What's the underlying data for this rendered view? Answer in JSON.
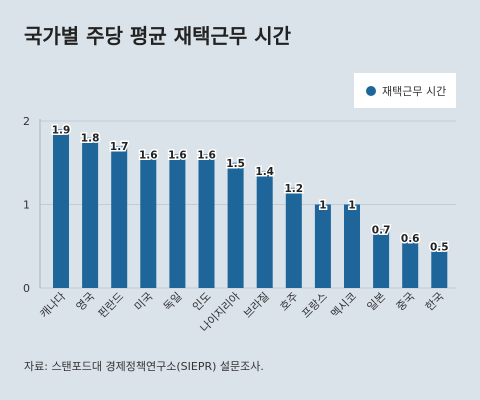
{
  "title": "국가별 주당 평균 재택근무 시간",
  "source": "자료: 스탠포드대 경제정책연구소(SIEPR) 설문조사.",
  "colors": {
    "bar": "#1e6699",
    "background": "#dae2ea",
    "grid": "#c3ccd6"
  },
  "chart_data": {
    "type": "bar",
    "title": "국가별 주당 평균 재택근무 시간",
    "xlabel": "",
    "ylabel": "",
    "ylim": [
      0,
      2
    ],
    "yticks": [
      0,
      1,
      2
    ],
    "grid": true,
    "legend_position": "top-right",
    "categories": [
      "캐나다",
      "영국",
      "핀란드",
      "미국",
      "독일",
      "인도",
      "나이지리아",
      "브라질",
      "호주",
      "프랑스",
      "멕시코",
      "일본",
      "중국",
      "한국"
    ],
    "series": [
      {
        "name": "재택근무 시간",
        "values": [
          1.9,
          1.8,
          1.7,
          1.6,
          1.6,
          1.6,
          1.5,
          1.4,
          1.2,
          1,
          1,
          0.7,
          0.6,
          0.5
        ]
      }
    ]
  }
}
